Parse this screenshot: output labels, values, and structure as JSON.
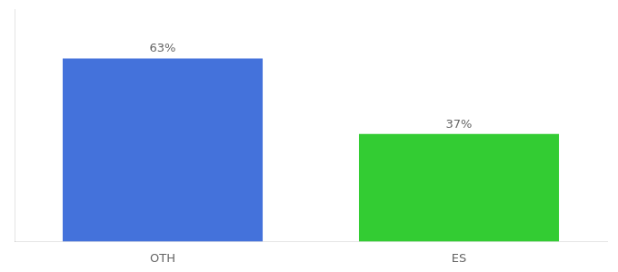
{
  "chart_data": {
    "type": "bar",
    "categories": [
      "OTH",
      "ES"
    ],
    "values": [
      63,
      37
    ],
    "value_labels": [
      "63%",
      "37%"
    ],
    "colors": [
      "#4472db",
      "#33cc33"
    ],
    "ylim": [
      0,
      80
    ],
    "data_labels": true,
    "tick_labels": "x",
    "grid": false
  }
}
